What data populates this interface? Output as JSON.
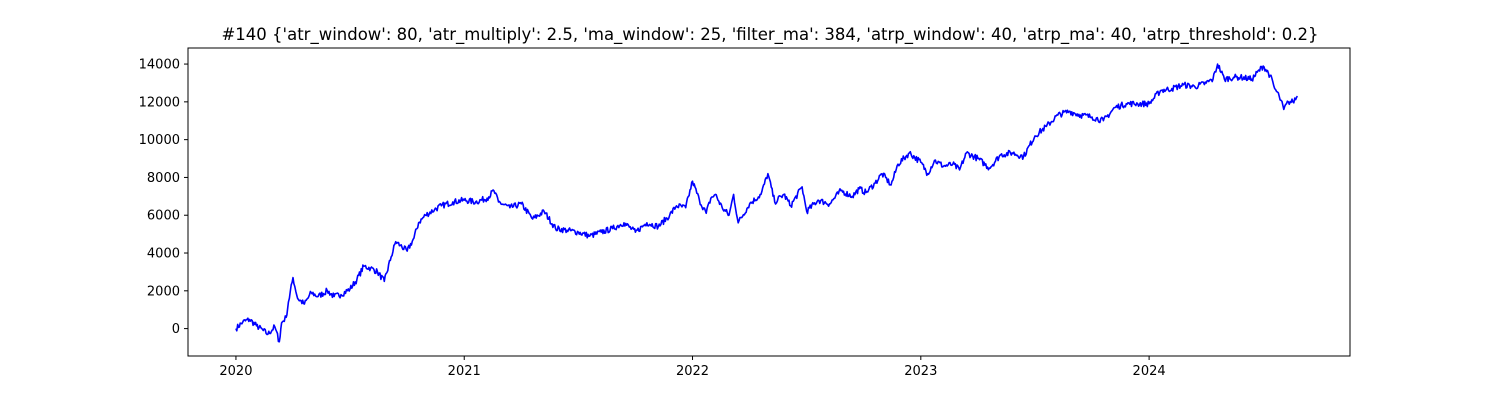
{
  "chart_data": {
    "type": "line",
    "title": "#140 {'atr_window': 80, 'atr_multiply': 2.5, 'ma_window': 25, 'filter_ma': 384, 'atrp_window': 40, 'atrp_ma': 40, 'atrp_threshold': 0.2}",
    "xlabel": "",
    "ylabel": "",
    "x_ticks": [
      {
        "value": 2020.0,
        "label": "2020"
      },
      {
        "value": 2021.0,
        "label": "2021"
      },
      {
        "value": 2022.0,
        "label": "2022"
      },
      {
        "value": 2023.0,
        "label": "2023"
      },
      {
        "value": 2024.0,
        "label": "2024"
      }
    ],
    "y_ticks": [
      {
        "value": 0,
        "label": "0"
      },
      {
        "value": 2000,
        "label": "2000"
      },
      {
        "value": 4000,
        "label": "4000"
      },
      {
        "value": 6000,
        "label": "6000"
      },
      {
        "value": 8000,
        "label": "8000"
      },
      {
        "value": 10000,
        "label": "10000"
      },
      {
        "value": 12000,
        "label": "12000"
      },
      {
        "value": 14000,
        "label": "14000"
      }
    ],
    "xlim": [
      2019.79,
      2024.88
    ],
    "ylim": [
      -1450,
      14850
    ],
    "grid": false,
    "series": [
      {
        "color": "#0000ff",
        "x": [
          2020.0,
          2020.03,
          2020.06,
          2020.09,
          2020.12,
          2020.14,
          2020.17,
          2020.19,
          2020.2,
          2020.22,
          2020.23,
          2020.25,
          2020.27,
          2020.3,
          2020.33,
          2020.36,
          2020.4,
          2020.43,
          2020.46,
          2020.5,
          2020.53,
          2020.56,
          2020.59,
          2020.62,
          2020.65,
          2020.68,
          2020.7,
          2020.72,
          2020.75,
          2020.78,
          2020.8,
          2020.83,
          2020.87,
          2020.9,
          2020.95,
          2021.0,
          2021.05,
          2021.1,
          2021.13,
          2021.15,
          2021.2,
          2021.25,
          2021.3,
          2021.35,
          2021.4,
          2021.45,
          2021.5,
          2021.55,
          2021.6,
          2021.65,
          2021.7,
          2021.75,
          2021.8,
          2021.85,
          2021.9,
          2021.93,
          2021.97,
          2022.0,
          2022.03,
          2022.06,
          2022.08,
          2022.1,
          2022.13,
          2022.16,
          2022.18,
          2022.2,
          2022.25,
          2022.3,
          2022.33,
          2022.36,
          2022.4,
          2022.43,
          2022.48,
          2022.5,
          2022.55,
          2022.6,
          2022.65,
          2022.7,
          2022.73,
          2022.76,
          2022.8,
          2022.83,
          2022.87,
          2022.9,
          2022.95,
          2023.0,
          2023.03,
          2023.06,
          2023.1,
          2023.14,
          2023.17,
          2023.2,
          2023.25,
          2023.3,
          2023.35,
          2023.4,
          2023.45,
          2023.5,
          2023.55,
          2023.6,
          2023.65,
          2023.7,
          2023.75,
          2023.8,
          2023.85,
          2023.9,
          2023.95,
          2024.0,
          2024.05,
          2024.1,
          2024.15,
          2024.2,
          2024.25,
          2024.28,
          2024.3,
          2024.33,
          2024.37,
          2024.4,
          2024.45,
          2024.5,
          2024.53,
          2024.55,
          2024.57,
          2024.59,
          2024.61,
          2024.63,
          2024.65
        ],
        "y": [
          0,
          350,
          480,
          150,
          -100,
          -300,
          100,
          -700,
          300,
          600,
          1400,
          2700,
          1600,
          1300,
          1900,
          1700,
          2000,
          1700,
          1800,
          2100,
          2600,
          3300,
          3200,
          3000,
          2500,
          3800,
          4600,
          4400,
          4100,
          4800,
          5600,
          6000,
          6300,
          6500,
          6700,
          6800,
          6700,
          6900,
          7300,
          6700,
          6400,
          6600,
          5800,
          6200,
          5300,
          5200,
          5100,
          4900,
          5100,
          5300,
          5600,
          5100,
          5600,
          5400,
          6000,
          6500,
          6400,
          7800,
          6800,
          6100,
          6900,
          7100,
          6400,
          6000,
          7100,
          5600,
          6600,
          7100,
          8200,
          6700,
          7100,
          6500,
          7500,
          6200,
          6800,
          6600,
          7300,
          7000,
          7400,
          7200,
          7700,
          8200,
          7600,
          8700,
          9300,
          8800,
          8200,
          8900,
          8600,
          8700,
          8400,
          9300,
          9000,
          8500,
          9200,
          9300,
          9100,
          10200,
          10700,
          11300,
          11500,
          11300,
          11200,
          11000,
          11700,
          11900,
          11900,
          11900,
          12600,
          12700,
          12900,
          12800,
          13000,
          13200,
          14000,
          13200,
          13300,
          13300,
          13200,
          13900,
          13400,
          12700,
          12300,
          11600,
          12000,
          12000,
          12300
        ]
      }
    ]
  }
}
